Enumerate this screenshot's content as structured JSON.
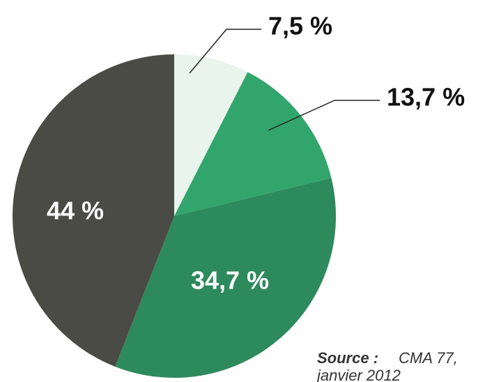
{
  "chart_data": {
    "type": "pie",
    "categories": [
      null,
      null,
      null,
      null
    ],
    "values": [
      7.5,
      13.7,
      34.7,
      44
    ],
    "value_labels": [
      "7,5 %",
      "13,7 %",
      "34,7 %",
      "44 %"
    ],
    "colors": [
      "#e8f4ec",
      "#31a56c",
      "#2d8a5c",
      "#4a4b44"
    ],
    "source": {
      "label": "Source :",
      "lines": [
        "CMA 77,",
        "janvier 2012"
      ]
    }
  }
}
